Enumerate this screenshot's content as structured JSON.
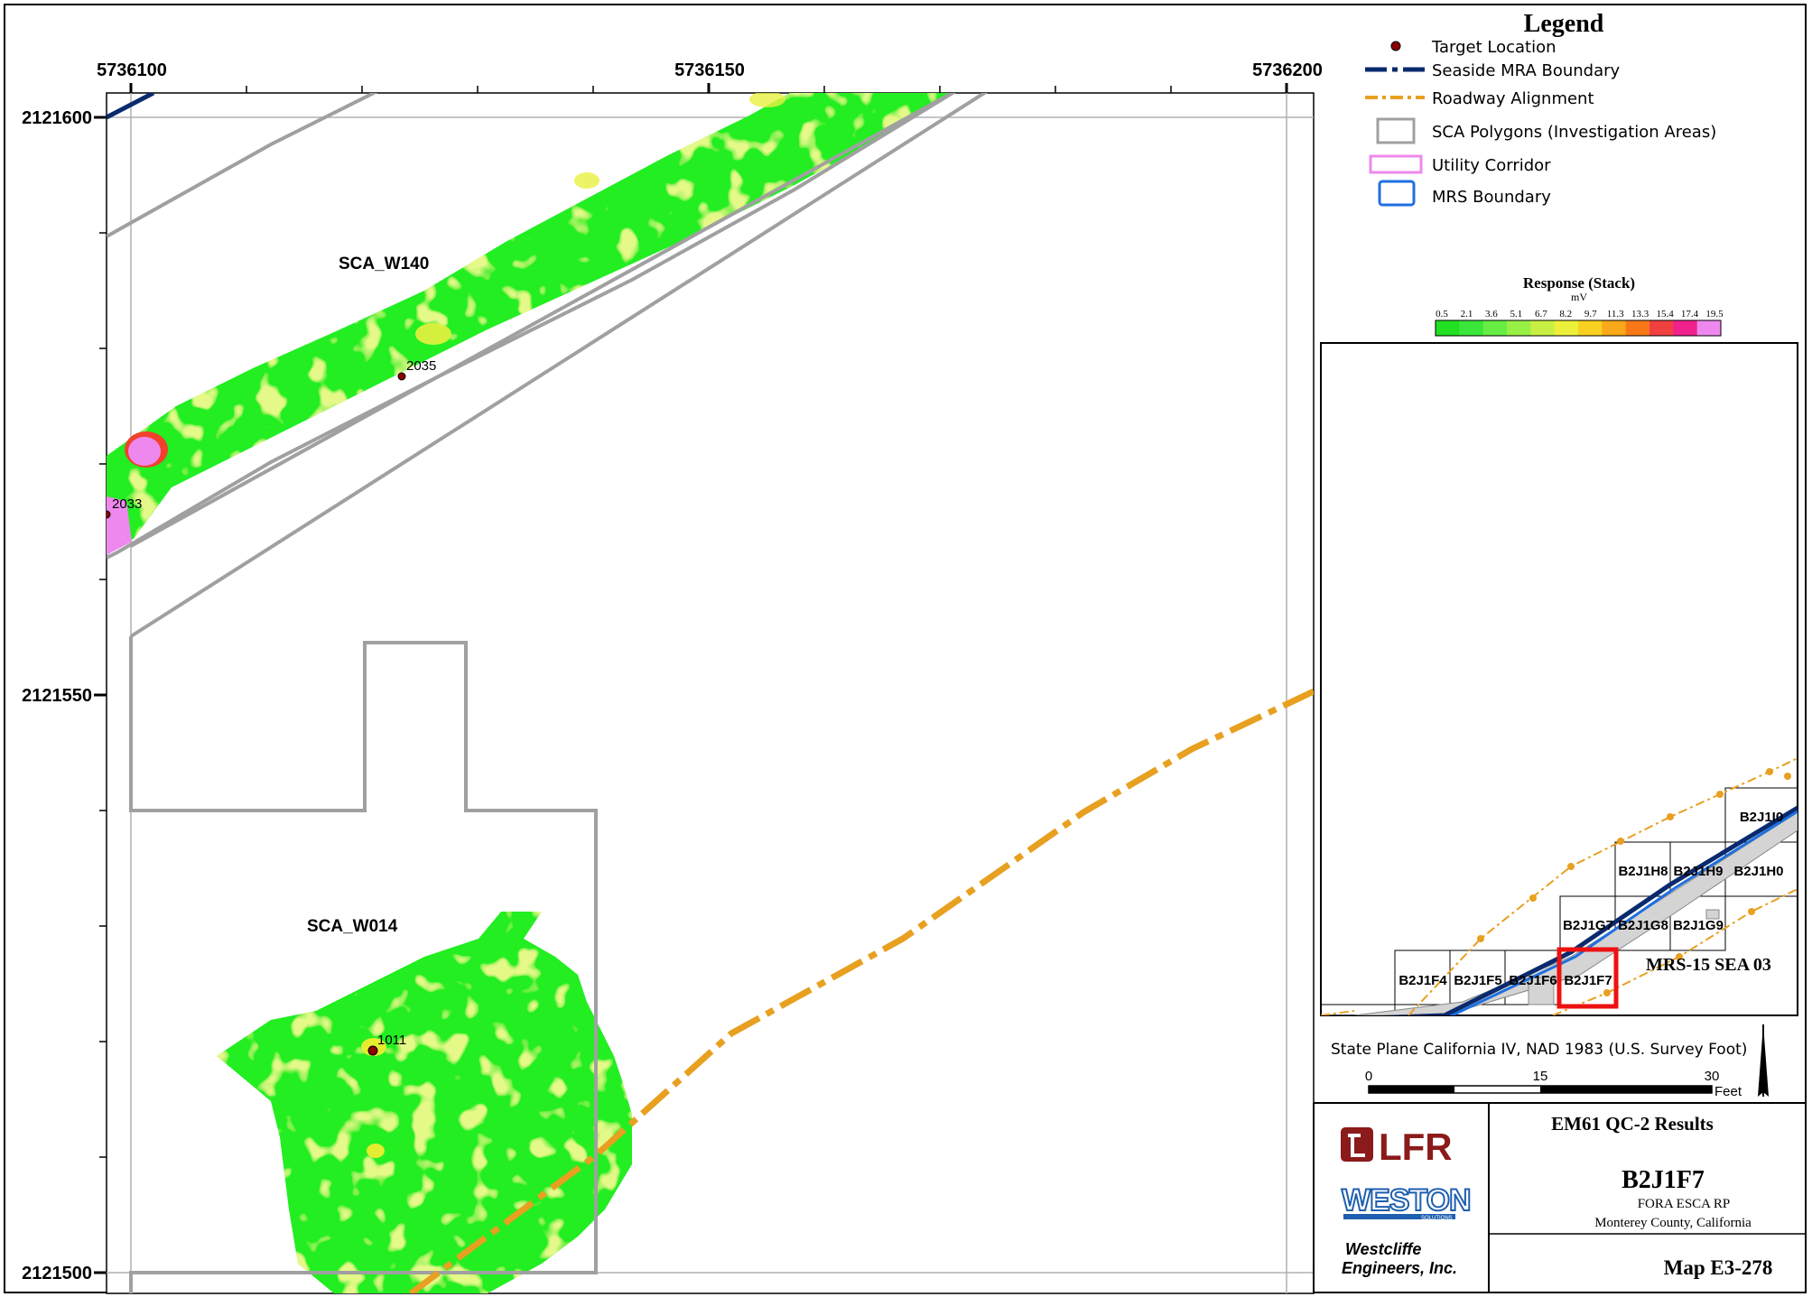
{
  "map": {
    "x_ticks": [
      "5736100",
      "5736150",
      "5736200"
    ],
    "y_ticks": [
      "2121600",
      "2121550",
      "2121500"
    ],
    "areas": [
      "SCA_W140",
      "SCA_W014"
    ],
    "targets": [
      "2035",
      "2033",
      "1011"
    ]
  },
  "legend": {
    "title": "Legend",
    "items": [
      {
        "label": "Target Location",
        "icon": "target-dot-icon",
        "color": "#8b0000"
      },
      {
        "label": "Seaside MRA Boundary",
        "icon": "dash-dot-line-icon",
        "color": "#0a2a6e"
      },
      {
        "label": "Roadway Alignment",
        "icon": "orange-dash-dot-line-icon",
        "color": "#e8a020"
      },
      {
        "label": "SCA Polygons (Investigation Areas)",
        "icon": "gray-box-icon",
        "color": "#a0a0a0"
      },
      {
        "label": "Utility Corridor",
        "icon": "pink-box-icon",
        "color": "#ee88ee"
      },
      {
        "label": "MRS Boundary",
        "icon": "blue-box-icon",
        "color": "#1e6fe0"
      }
    ]
  },
  "ramp": {
    "title": "Response (Stack)",
    "unit": "mV",
    "values": [
      "0.5",
      "2.1",
      "3.6",
      "5.1",
      "6.7",
      "8.2",
      "9.7",
      "11.3",
      "13.3",
      "15.4",
      "17.4",
      "19.5"
    ],
    "colors": [
      "#22e022",
      "#3ae63a",
      "#66ee44",
      "#99f044",
      "#c8f044",
      "#ecf03a",
      "#f8d020",
      "#f8a818",
      "#f87818",
      "#f04040",
      "#f0208c",
      "#ee88ee"
    ]
  },
  "inset": {
    "cells": [
      "B2J1I0",
      "B2J1H8",
      "B2J1H9",
      "B2J1H0",
      "B2J1G7",
      "B2J1G8",
      "B2J1G9",
      "B2J1F4",
      "B2J1F5",
      "B2J1F6",
      "B2J1F7"
    ],
    "area_label": "MRS-15 SEA 03"
  },
  "projection": "State Plane California IV, NAD 1983 (U.S. Survey Foot)",
  "scalebar": {
    "labels": [
      "0",
      "15",
      "30"
    ],
    "unit": "Feet"
  },
  "title_block": {
    "heading": "EM61 QC-2 Results",
    "grid_id": "B2J1F7",
    "project": "FORA ESCA RP",
    "location": "Monterey County, California",
    "map_number": "Map E3-278",
    "logo_lfr": "LFR",
    "logo_weston": "WESTON",
    "logo_weston_sub": "SOLUTIONS",
    "company_line1": "Westcliffe",
    "company_line2": "Engineers, Inc."
  }
}
